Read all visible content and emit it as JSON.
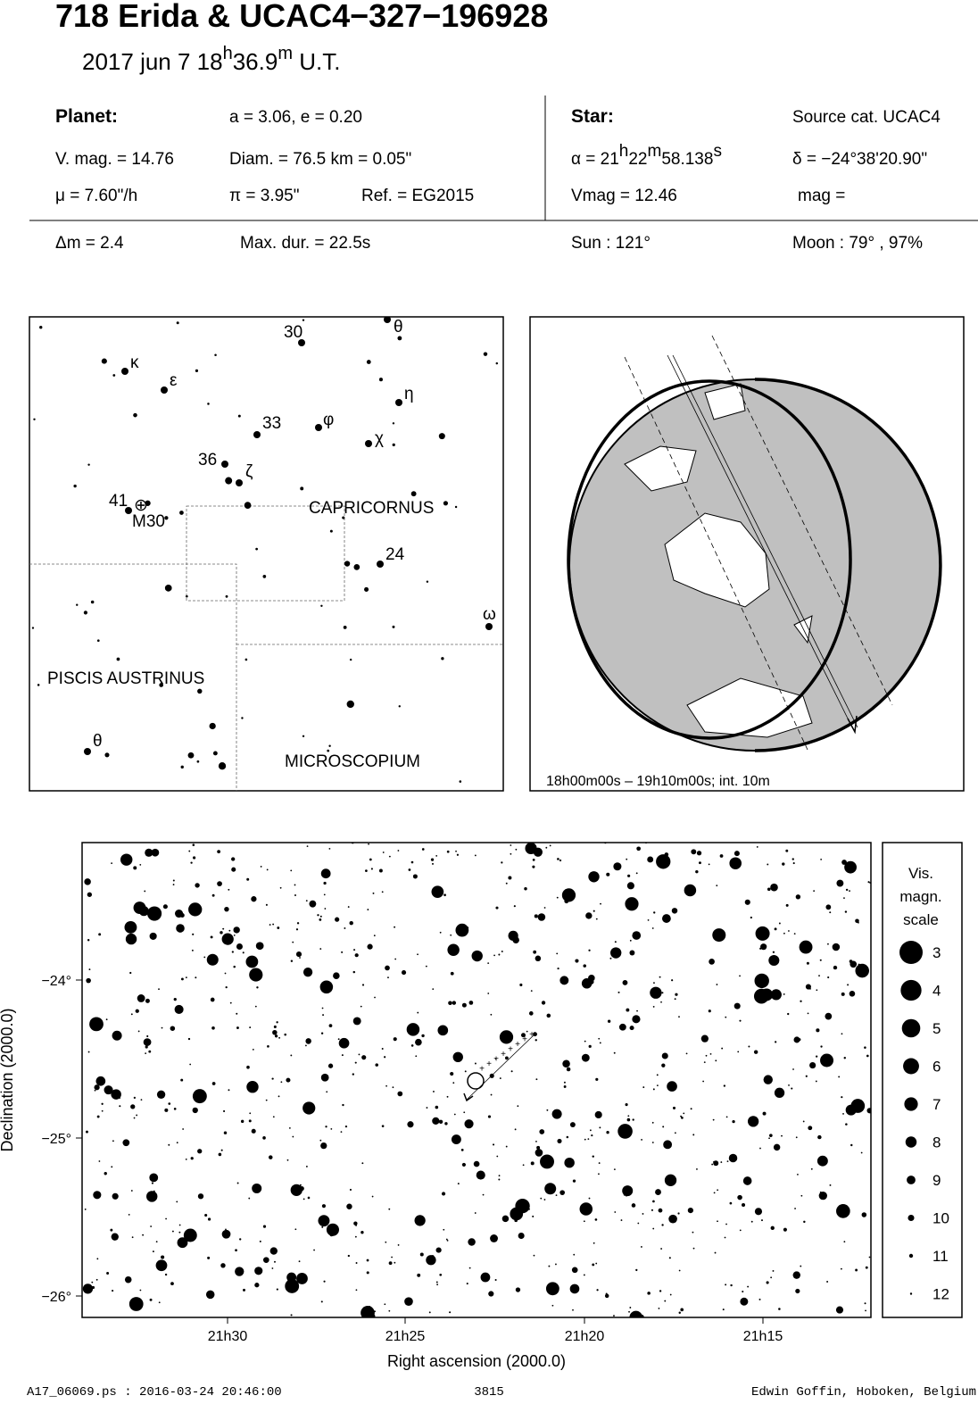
{
  "header": {
    "title": "718 Erida  &  UCAC4−327−196928",
    "date": [
      "2017 jun  7  18",
      "h",
      "36.9",
      "m",
      " U.T."
    ]
  },
  "info": {
    "planet_label": "Planet:",
    "orbit": "a = 3.06, e = 0.20",
    "star_label": "Star:",
    "source": "Source cat.  UCAC4",
    "vmag": "V. mag. = 14.76",
    "diam": "Diam. = 76.5 km = 0.05\"",
    "alpha": [
      "α = 21",
      "h",
      "22",
      "m",
      "58.138",
      "s"
    ],
    "delta": "δ = −24°38'20.90\"",
    "mu": "μ =  7.60\"/h",
    "pi": "π =  3.95\"",
    "ref": "Ref. = EG2015",
    "star_vmag": "Vmag = 12.46",
    "mag": "mag =",
    "dm": "Δm = 2.4",
    "maxdur": "Max. dur. = 22.5s",
    "sun": "Sun : 121°",
    "moon": "Moon :  79° , 97%"
  },
  "map": {
    "labels": [
      "30",
      "θ",
      "κ",
      "ε",
      "η",
      "33",
      "φ",
      "χ",
      "36",
      "ζ",
      "41",
      "M30",
      "CAPRICORNUS",
      "24",
      "ω",
      "PISCIS AUSTRINUS",
      "θ",
      "MICROSCOPIUM"
    ]
  },
  "globe": {
    "caption": "18h00m00s – 19h10m00s; int. 10m"
  },
  "starchart": {
    "yticks": [
      "−24°",
      "−25°",
      "−26°"
    ],
    "xticks": [
      "21h30",
      "21h25",
      "21h20",
      "21h15"
    ],
    "ylabel": "Declination (2000.0)",
    "xlabel": "Right ascension (2000.0)",
    "legend_title": [
      "Vis.",
      "magn.",
      "scale"
    ],
    "legend": [
      "3",
      "4",
      "5",
      "6",
      "7",
      "8",
      "9",
      "10",
      "11",
      "12"
    ]
  },
  "footer": {
    "file": "A17_06069.ps : 2016-03-24 20:46:00",
    "number": "3815",
    "author": "Edwin Goffin, Hoboken, Belgium"
  }
}
